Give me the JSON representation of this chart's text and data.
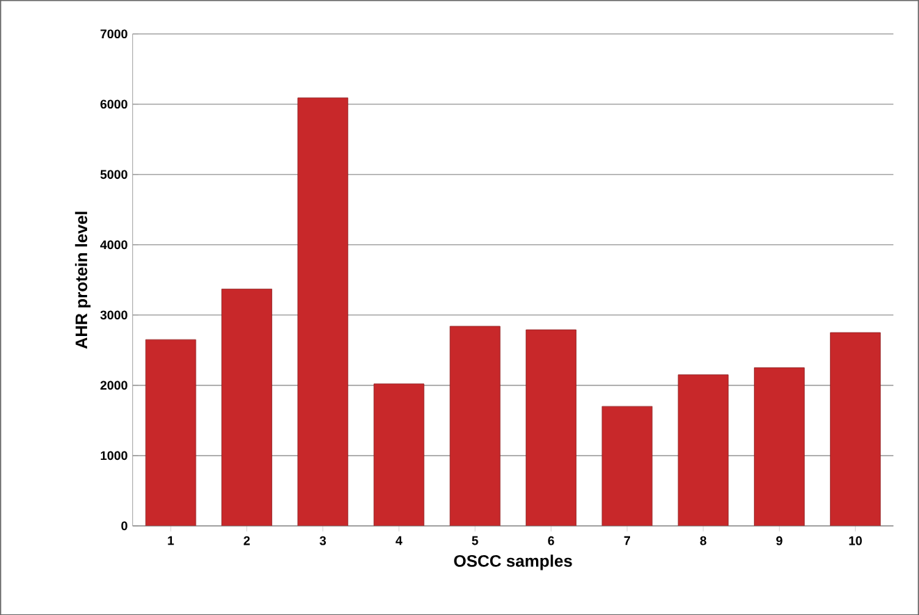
{
  "chart_data": {
    "type": "bar",
    "xlabel": "OSCC samples",
    "ylabel": "AHR protein level",
    "categories": [
      "1",
      "2",
      "3",
      "4",
      "5",
      "6",
      "7",
      "8",
      "9",
      "10"
    ],
    "values": [
      2650,
      3370,
      6090,
      2020,
      2840,
      2790,
      1700,
      2150,
      2250,
      2750
    ],
    "color": "#c8282a",
    "ylim": [
      0,
      7000
    ],
    "yticks": [
      0,
      1000,
      2000,
      3000,
      4000,
      5000,
      6000,
      7000
    ],
    "grid": "y"
  }
}
